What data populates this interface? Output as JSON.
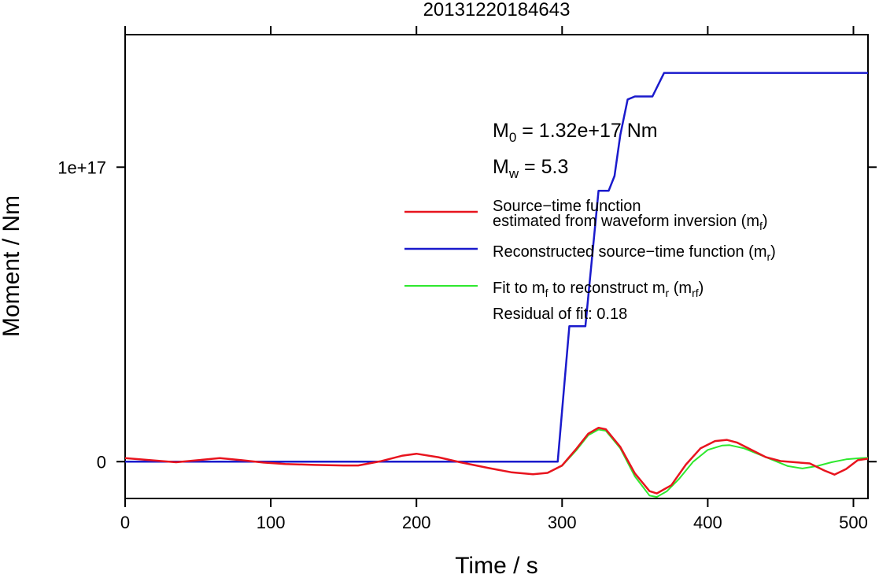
{
  "chart_data": {
    "type": "line",
    "title": "20131220184643",
    "xlabel": "Time / s",
    "ylabel": "Moment / Nm",
    "xlim": [
      0,
      510
    ],
    "ylim": [
      -1.25e+16,
      1.45e+17
    ],
    "xticks": [
      0,
      100,
      200,
      300,
      400,
      500
    ],
    "xtick_labels": [
      "0",
      "100",
      "200",
      "300",
      "400",
      "500"
    ],
    "yticks": [
      0,
      1e+17
    ],
    "ytick_labels": [
      "0",
      "1e+17"
    ],
    "grid": false,
    "legend_position": "right",
    "annotations": {
      "m0_main": "M",
      "m0_sub": "0",
      "m0_rest": " = 1.32e+17 Nm",
      "mw_main": "M",
      "mw_sub": "w",
      "mw_rest": " = 5.3",
      "residual": "Residual of fit: 0.18"
    },
    "legend": {
      "red_line1": "Source−time function",
      "red_line2_main": "estimated from waveform inversion (m",
      "red_line2_sub": "f",
      "red_line2_end": ")",
      "blue_main": "Reconstructed source−time function (m",
      "blue_sub": "r",
      "blue_end": ")",
      "green_a": "Fit to m",
      "green_sub1": "f",
      "green_b": " to reconstruct m",
      "green_sub2": "r",
      "green_c": " (m",
      "green_sub3": "rf",
      "green_d": ")"
    },
    "series": [
      {
        "color": "#e8141e",
        "x": [
          0,
          15,
          35,
          50,
          65,
          80,
          95,
          110,
          130,
          150,
          160,
          175,
          190,
          200,
          215,
          230,
          250,
          265,
          280,
          290,
          300,
          310,
          318,
          325,
          330,
          340,
          350,
          360,
          365,
          375,
          385,
          395,
          405,
          413,
          420,
          430,
          440,
          450,
          460,
          470,
          480,
          487,
          495,
          503,
          510
        ],
        "y": [
          1200000000000000.0,
          600000000000000.0,
          -200000000000000.0,
          500000000000000.0,
          1200000000000000.0,
          500000000000000.0,
          -300000000000000.0,
          -800000000000000.0,
          -1100000000000000.0,
          -1300000000000000.0,
          -1300000000000000.0,
          100000000000000.0,
          2000000000000000.0,
          2700000000000000.0,
          1500000000000000.0,
          -200000000000000.0,
          -2200000000000000.0,
          -3600000000000000.0,
          -4300000000000000.0,
          -3800000000000000.0,
          -1300000000000000.0,
          4500000000000000.0,
          9500000000000000.0,
          1.15e+16,
          1.1e+16,
          5000000000000000.0,
          -4000000000000000.0,
          -1e+16,
          -1.08e+16,
          -8000000000000000.0,
          -1000000000000000.0,
          4500000000000000.0,
          7000000000000000.0,
          7400000000000000.0,
          6500000000000000.0,
          4000000000000000.0,
          1500000000000000.0,
          200000000000000.0,
          -200000000000000.0,
          -600000000000000.0,
          -3000000000000000.0,
          -4400000000000000.0,
          -2500000000000000.0,
          500000000000000.0,
          1000000000000000.0
        ]
      },
      {
        "color": "#1a1acc",
        "x": [
          0,
          297,
          305,
          312,
          316,
          325,
          332,
          336,
          340,
          345,
          350,
          360,
          362,
          370,
          510
        ],
        "y": [
          0,
          0,
          4.6e+16,
          4.6e+16,
          4.6e+16,
          9.2e+16,
          9.2e+16,
          9.7e+16,
          1.11e+17,
          1.23e+17,
          1.24e+17,
          1.24e+17,
          1.24e+17,
          1.32e+17,
          1.32e+17
        ]
      },
      {
        "color": "#2ee82e",
        "x": [
          290,
          300,
          310,
          318,
          325,
          330,
          340,
          350,
          360,
          365,
          372,
          380,
          390,
          400,
          410,
          415,
          425,
          435,
          445,
          455,
          465,
          475,
          485,
          495,
          505,
          510
        ],
        "y": [
          -3800000000000000.0,
          -1400000000000000.0,
          4000000000000000.0,
          9000000000000000.0,
          1.09e+16,
          1.05e+16,
          4500000000000000.0,
          -5000000000000000.0,
          -1.15e+16,
          -1.2e+16,
          -1e+16,
          -6000000000000000.0,
          0,
          4000000000000000.0,
          5500000000000000.0,
          5600000000000000.0,
          4500000000000000.0,
          2500000000000000.0,
          500000000000000.0,
          -1500000000000000.0,
          -2300000000000000.0,
          -1500000000000000.0,
          -200000000000000.0,
          800000000000000.0,
          1200000000000000.0,
          1300000000000000.0
        ]
      }
    ]
  }
}
